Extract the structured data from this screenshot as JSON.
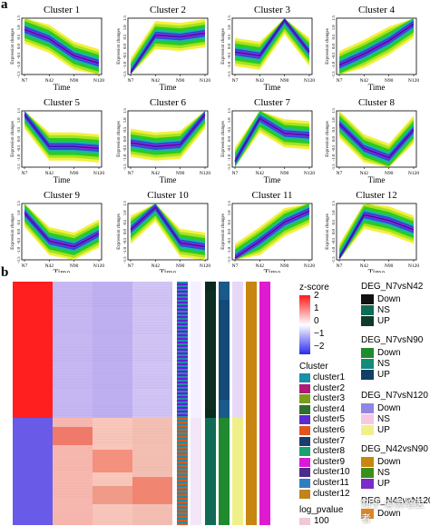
{
  "panel_a": {
    "label": "a",
    "clusters": [
      {
        "title": "Cluster 1",
        "trend": [
          0.9,
          0.4,
          -0.5,
          -0.9
        ]
      },
      {
        "title": "Cluster 2",
        "trend": [
          -1.4,
          0.6,
          0.5,
          0.7
        ]
      },
      {
        "title": "Cluster 3",
        "trend": [
          -0.3,
          -0.5,
          1.4,
          -0.3
        ]
      },
      {
        "title": "Cluster 4",
        "trend": [
          -1.0,
          -0.4,
          0.3,
          1.2
        ]
      },
      {
        "title": "Cluster 5",
        "trend": [
          1.3,
          -0.4,
          -0.4,
          -0.5
        ]
      },
      {
        "title": "Cluster 6",
        "trend": [
          -0.2,
          -0.4,
          -0.3,
          1.3
        ]
      },
      {
        "title": "Cluster 7",
        "trend": [
          -1.2,
          1.1,
          0.3,
          0.2
        ]
      },
      {
        "title": "Cluster 8",
        "trend": [
          0.8,
          -0.5,
          -1.0,
          0.5
        ]
      },
      {
        "title": "Cluster 9",
        "trend": [
          1.0,
          -0.5,
          -0.8,
          -0.1
        ]
      },
      {
        "title": "Cluster 10",
        "trend": [
          0.1,
          1.3,
          -0.6,
          -0.8
        ]
      },
      {
        "title": "Cluster 11",
        "trend": [
          -1.4,
          -0.5,
          0.5,
          1.1
        ]
      },
      {
        "title": "Cluster 12",
        "trend": [
          -1.4,
          0.9,
          0.6,
          0.1
        ]
      }
    ],
    "x_ticks": [
      "N7",
      "N42",
      "N90",
      "N120"
    ],
    "y_ticks": [
      "-1.5",
      "-1.0",
      "-0.5",
      "0.0",
      "0.5",
      "1.0",
      "1.5"
    ],
    "xlabel": "Time",
    "ylabel": "Expression changes"
  },
  "panel_b": {
    "label": "b",
    "zscore": {
      "title": "z-score",
      "ticks": [
        "2",
        "1",
        "0",
        "−1",
        "−2"
      ]
    },
    "cluster_legend": {
      "title": "Cluster",
      "items": [
        {
          "label": "cluster1",
          "color": "#1a8fa8"
        },
        {
          "label": "cluster2",
          "color": "#b0187a"
        },
        {
          "label": "cluster3",
          "color": "#7a9e1c"
        },
        {
          "label": "cluster4",
          "color": "#2e6e2e"
        },
        {
          "label": "cluster5",
          "color": "#5b2bd0"
        },
        {
          "label": "cluster6",
          "color": "#e0561c"
        },
        {
          "label": "cluster7",
          "color": "#1c3c6e"
        },
        {
          "label": "cluster8",
          "color": "#1aa06e"
        },
        {
          "label": "cluster9",
          "color": "#d81bd8"
        },
        {
          "label": "cluster10",
          "color": "#4d2b8a"
        },
        {
          "label": "cluster11",
          "color": "#2f7fbf"
        },
        {
          "label": "cluster12",
          "color": "#c0841c"
        }
      ]
    },
    "log_pvalue": {
      "title": "log_pvalue",
      "partial_value": "100"
    },
    "deg_legends": [
      {
        "title": "DEG_N7vsN42",
        "items": [
          {
            "label": "Down",
            "color": "#111111"
          },
          {
            "label": "NS",
            "color": "#0f6b56"
          },
          {
            "label": "UP",
            "color": "#0f3b2a"
          }
        ]
      },
      {
        "title": "DEG_N7vsN90",
        "items": [
          {
            "label": "Down",
            "color": "#1f8a2e"
          },
          {
            "label": "NS",
            "color": "#148a7a"
          },
          {
            "label": "UP",
            "color": "#123f66"
          }
        ]
      },
      {
        "title": "DEG_N7vsN120",
        "items": [
          {
            "label": "Down",
            "color": "#8f86e6"
          },
          {
            "label": "NS",
            "color": "#f7c8df"
          },
          {
            "label": "UP",
            "color": "#f0f08a"
          }
        ]
      },
      {
        "title": "DEG_N42vsN90",
        "items": [
          {
            "label": "Down",
            "color": "#c7860f"
          },
          {
            "label": "NS",
            "color": "#3b8f18"
          },
          {
            "label": "UP",
            "color": "#7c2ac8"
          }
        ]
      },
      {
        "title": "DEG_N42vsN120",
        "items": [
          {
            "label": "Down",
            "color": "#e0861f"
          }
        ]
      }
    ]
  },
  "watermark": "知乎 @黑暗医者"
}
